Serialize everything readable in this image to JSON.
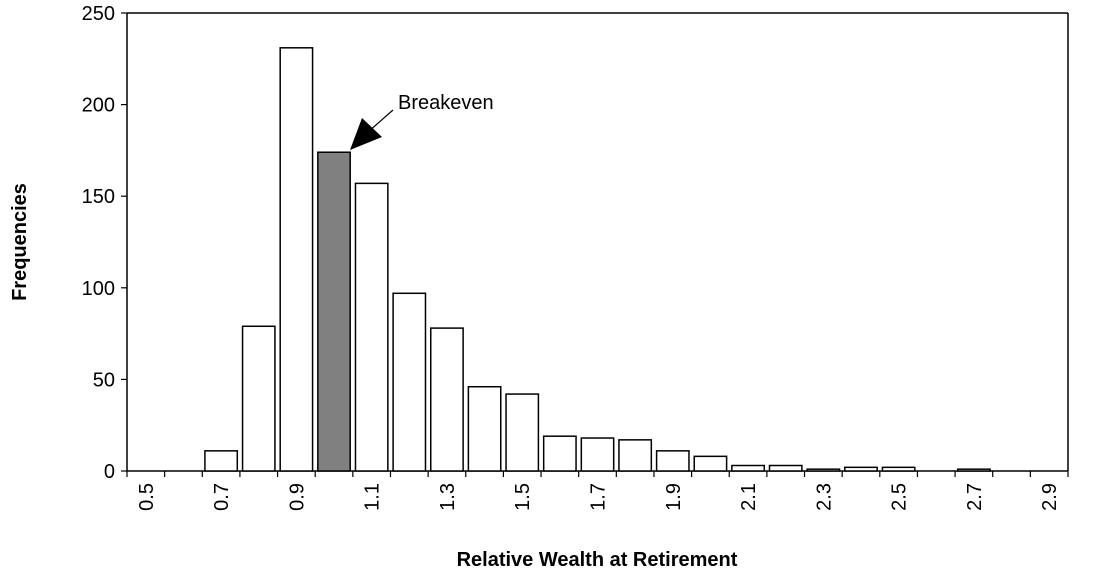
{
  "chart_data": {
    "type": "bar",
    "x_label": "Relative Wealth at Retirement",
    "y_label": "Frequencies",
    "annotations": [
      "Breakeven"
    ],
    "categories": [
      "0.5",
      null,
      "0.7",
      null,
      "0.9",
      null,
      "1.1",
      null,
      "1.3",
      null,
      "1.5",
      null,
      "1.7",
      null,
      "1.9",
      null,
      "2.1",
      null,
      "2.3",
      null,
      "2.5",
      null,
      "2.7",
      null,
      "2.9"
    ],
    "values": [
      0,
      0,
      11,
      79,
      231,
      174,
      157,
      97,
      78,
      46,
      42,
      19,
      18,
      17,
      11,
      8,
      3,
      3,
      1,
      2,
      2,
      0,
      1,
      0,
      0
    ],
    "colors": [
      "#ffffff",
      "#ffffff",
      "#ffffff",
      "#ffffff",
      "#ffffff",
      "#808080",
      "#ffffff",
      "#ffffff",
      "#ffffff",
      "#ffffff",
      "#ffffff",
      "#ffffff",
      "#ffffff",
      "#ffffff",
      "#ffffff",
      "#ffffff",
      "#ffffff",
      "#ffffff",
      "#ffffff",
      "#ffffff",
      "#ffffff",
      "#ffffff",
      "#ffffff",
      "#ffffff",
      "#ffffff"
    ],
    "ylim": [
      0,
      250
    ],
    "yticks": [
      0,
      50,
      100,
      150,
      200,
      250
    ],
    "grid": false
  }
}
